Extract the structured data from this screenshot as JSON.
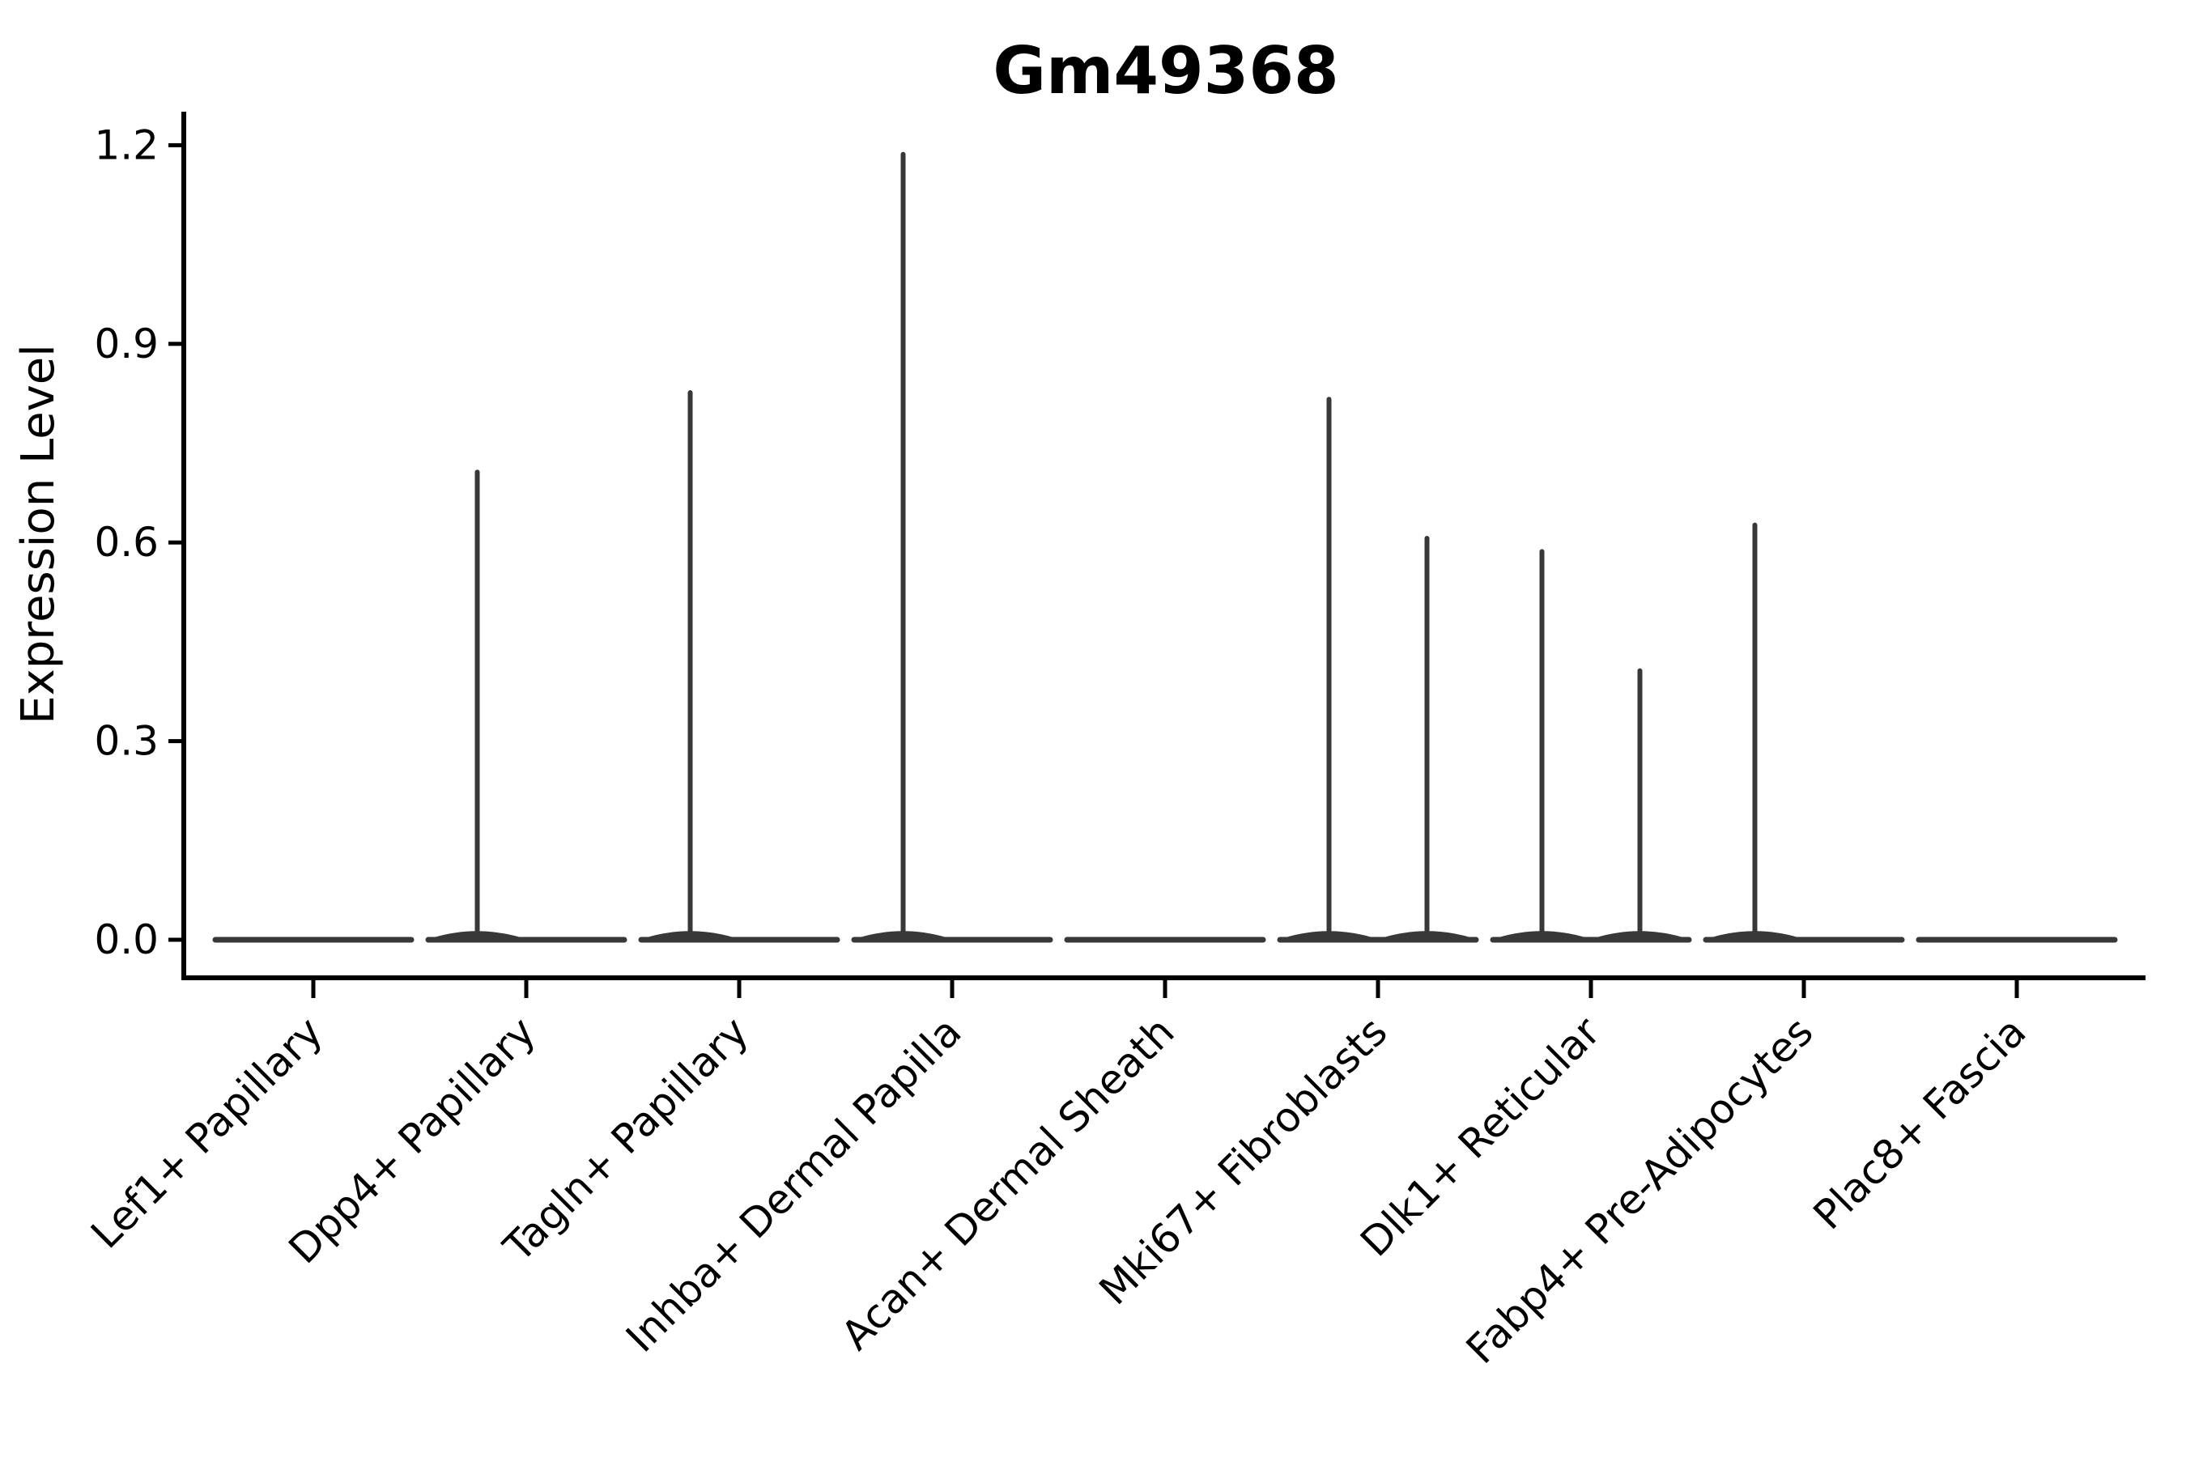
{
  "chart_data": {
    "type": "violin",
    "title": "Gm49368",
    "ylabel": "Expression Level",
    "xlabel": "",
    "yticks": [
      "0.0",
      "0.3",
      "0.6",
      "0.9",
      "1.2"
    ],
    "ylim": [
      -0.06,
      1.25
    ],
    "grid": false,
    "legend": false,
    "background": "#ffffff",
    "axis_color": "#000000",
    "violin_color": "#383838",
    "categories": [
      "Lef1+ Papillary",
      "Dpp4+ Papillary",
      "Tagln+ Papillary",
      "Inhba+ Dermal Papilla",
      "Acan+ Dermal Sheath",
      "Mki67+ Fibroblasts",
      "Dlk1+ Reticular",
      "Fabp4+ Pre-Adipocytes",
      "Plac8+ Fascia"
    ],
    "violins": [
      {
        "category": "Lef1+ Papillary",
        "baseline_value": 0.0,
        "spikes": []
      },
      {
        "category": "Dpp4+ Papillary",
        "baseline_value": 0.0,
        "spikes": [
          {
            "side": "left",
            "max": 0.71
          }
        ]
      },
      {
        "category": "Tagln+ Papillary",
        "baseline_value": 0.0,
        "spikes": [
          {
            "side": "left",
            "max": 0.83
          }
        ]
      },
      {
        "category": "Inhba+ Dermal Papilla",
        "baseline_value": 0.0,
        "spikes": [
          {
            "side": "left",
            "max": 1.19
          }
        ]
      },
      {
        "category": "Acan+ Dermal Sheath",
        "baseline_value": 0.0,
        "spikes": []
      },
      {
        "category": "Mki67+ Fibroblasts",
        "baseline_value": 0.0,
        "spikes": [
          {
            "side": "left",
            "max": 0.82
          },
          {
            "side": "right",
            "max": 0.61
          }
        ]
      },
      {
        "category": "Dlk1+ Reticular",
        "baseline_value": 0.0,
        "spikes": [
          {
            "side": "left",
            "max": 0.59
          },
          {
            "side": "right",
            "max": 0.41
          }
        ]
      },
      {
        "category": "Fabp4+ Pre-Adipocytes",
        "baseline_value": 0.0,
        "spikes": [
          {
            "side": "left",
            "max": 0.63
          }
        ]
      },
      {
        "category": "Plac8+ Fascia",
        "baseline_value": 0.0,
        "spikes": []
      }
    ]
  }
}
